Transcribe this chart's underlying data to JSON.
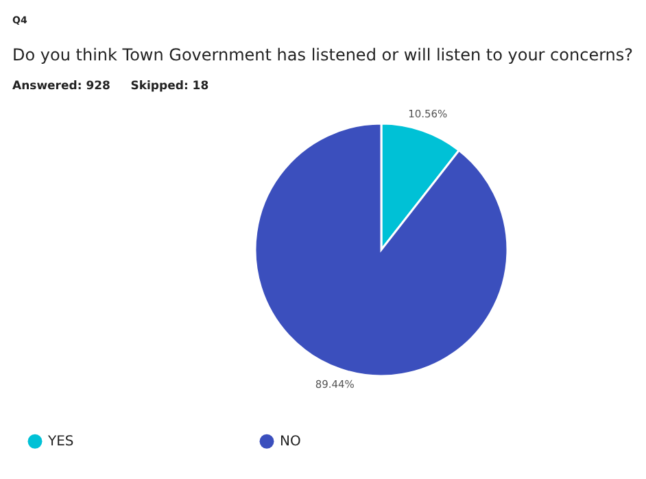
{
  "chart_data": {
    "type": "pie",
    "title": "Do you think Town Government has listened or will listen to your concerns?",
    "subtitle": "Answered: 928     Skipped: 18",
    "annotations": [
      "Q4"
    ],
    "categories": [
      "YES",
      "NO"
    ],
    "values": [
      10.56,
      89.44
    ],
    "colors": [
      "#00c1d6",
      "#3b4fbd"
    ],
    "value_labels": [
      "10.56%",
      "89.44%"
    ],
    "legend": "bottom left"
  }
}
